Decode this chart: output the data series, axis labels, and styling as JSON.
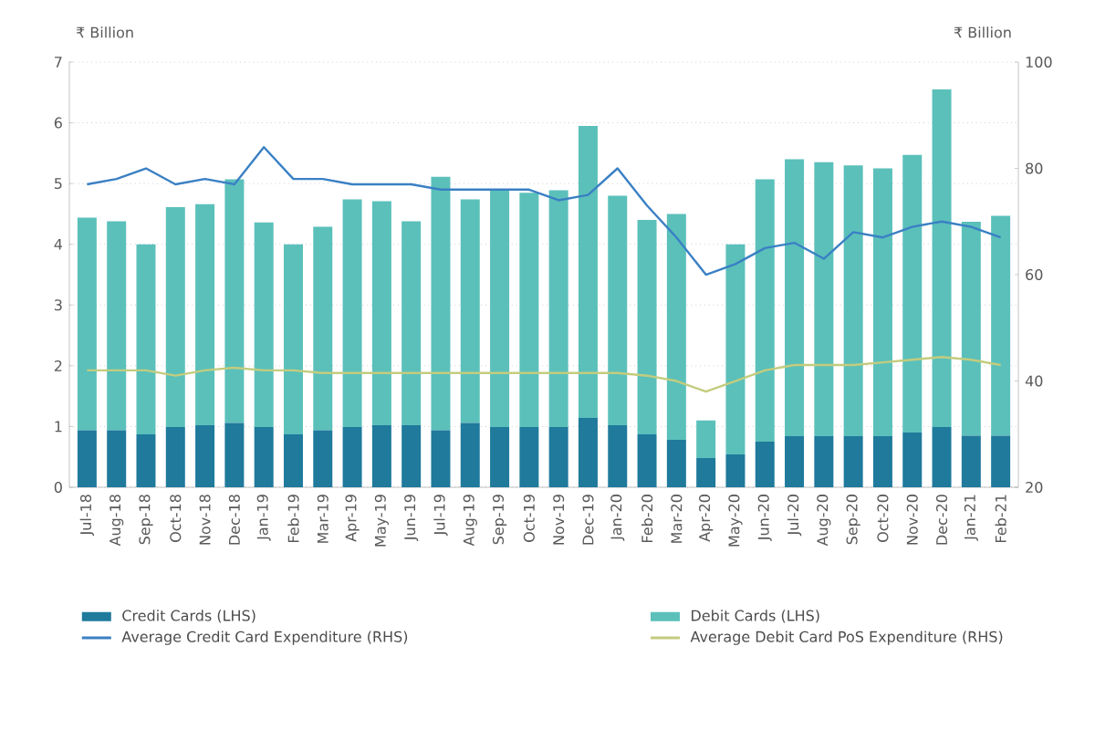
{
  "chart_data": {
    "type": "bar",
    "stacked": true,
    "ylabel": "₹ Billion",
    "y2label": "₹ Billion",
    "categories": [
      "Jul-18",
      "Aug-18",
      "Sep-18",
      "Oct-18",
      "Nov-18",
      "Dec-18",
      "Jan-19",
      "Feb-19",
      "Mar-19",
      "Apr-19",
      "May-19",
      "Jun-19",
      "Jul-19",
      "Aug-19",
      "Sep-19",
      "Oct-19",
      "Nov-19",
      "Dec-19",
      "Jan-20",
      "Feb-20",
      "Mar-20",
      "Apr-20",
      "May-20",
      "Jun-20",
      "Jul-20",
      "Aug-20",
      "Sep-20",
      "Oct-20",
      "Nov-20",
      "Dec-20",
      "Jan-21",
      "Feb-21"
    ],
    "series": [
      {
        "name": "Credit Cards (LHS)",
        "color": "#1f7a9c",
        "values": [
          0.94,
          0.94,
          0.87,
          0.99,
          1.02,
          1.06,
          0.99,
          0.87,
          0.94,
          0.99,
          1.02,
          1.02,
          0.94,
          1.06,
          0.99,
          0.99,
          0.99,
          1.14,
          1.02,
          0.87,
          0.78,
          0.48,
          0.54,
          0.75,
          0.84,
          0.84,
          0.84,
          0.84,
          0.9,
          0.99,
          0.85,
          0.85
        ]
      },
      {
        "name": "Debit Cards (LHS)",
        "color": "#5bc0ba",
        "values": [
          3.5,
          3.44,
          3.13,
          3.62,
          3.64,
          4.01,
          3.37,
          3.13,
          3.35,
          3.75,
          3.69,
          3.36,
          4.17,
          3.68,
          3.9,
          3.86,
          3.9,
          4.81,
          3.78,
          3.53,
          3.72,
          0.62,
          3.46,
          4.32,
          4.56,
          4.51,
          4.46,
          4.41,
          4.57,
          5.56,
          3.52,
          3.62
        ]
      },
      {
        "name": "Average Credit Card Expenditure (RHS)",
        "type": "line",
        "axis": "y2",
        "color": "#3a80c4",
        "values": [
          77,
          78,
          80,
          77,
          78,
          77,
          84,
          78,
          78,
          77,
          77,
          77,
          76,
          76,
          76,
          76,
          74,
          75,
          80,
          73,
          67,
          60,
          62,
          65,
          66,
          63,
          68,
          67,
          69,
          70,
          69,
          67
        ]
      },
      {
        "name": "Average Debit Card PoS Expenditure (RHS)",
        "type": "line",
        "axis": "y2",
        "color": "#c3cc7e",
        "values": [
          42,
          42,
          42,
          41,
          42,
          42.5,
          42,
          42,
          41.5,
          41.5,
          41.5,
          41.5,
          41.5,
          41.5,
          41.5,
          41.5,
          41.5,
          41.5,
          41.5,
          41,
          40,
          38,
          40,
          42,
          43,
          43,
          43,
          43.5,
          44,
          44.5,
          44,
          43
        ]
      }
    ],
    "ylim": [
      0,
      7
    ],
    "yticks": [
      0,
      1,
      2,
      3,
      4,
      5,
      6,
      7
    ],
    "y2lim": [
      20,
      100
    ],
    "y2ticks": [
      20,
      40,
      60,
      80,
      100
    ],
    "grid": "y",
    "legend": "bottom"
  }
}
